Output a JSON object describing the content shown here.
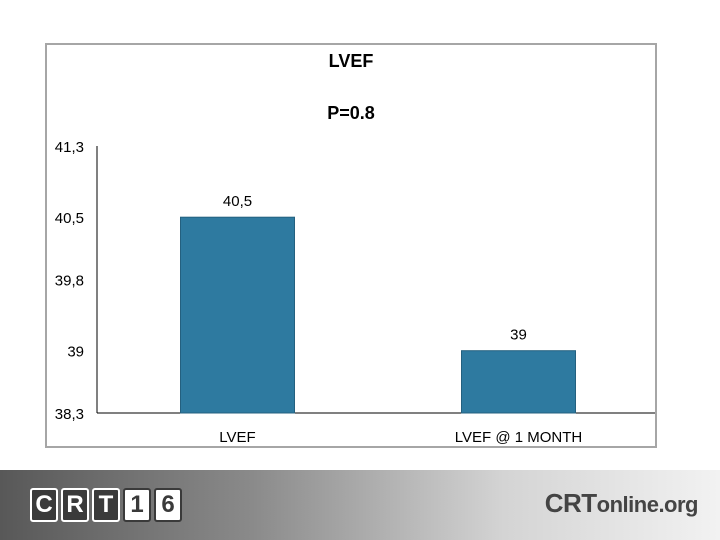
{
  "chart_data": {
    "type": "bar",
    "title": "LVEF",
    "subtitle": "P=0.8",
    "categories": [
      "LVEF",
      "LVEF @ 1 MONTH"
    ],
    "values": [
      40.5,
      39
    ],
    "data_labels": [
      "40,5",
      "39"
    ],
    "yticks": [
      "41,3",
      "40,5",
      "39,8",
      "39",
      "38,3"
    ],
    "ylim": [
      38.3,
      41.3
    ],
    "grid": false,
    "legend": "none",
    "bar_color": "#2e7aa0"
  },
  "footer": {
    "logo_left_tiles": [
      "C",
      "R",
      "T",
      "1",
      "6"
    ],
    "logo_right_main": "CRT",
    "logo_right_rest": "online.org"
  }
}
